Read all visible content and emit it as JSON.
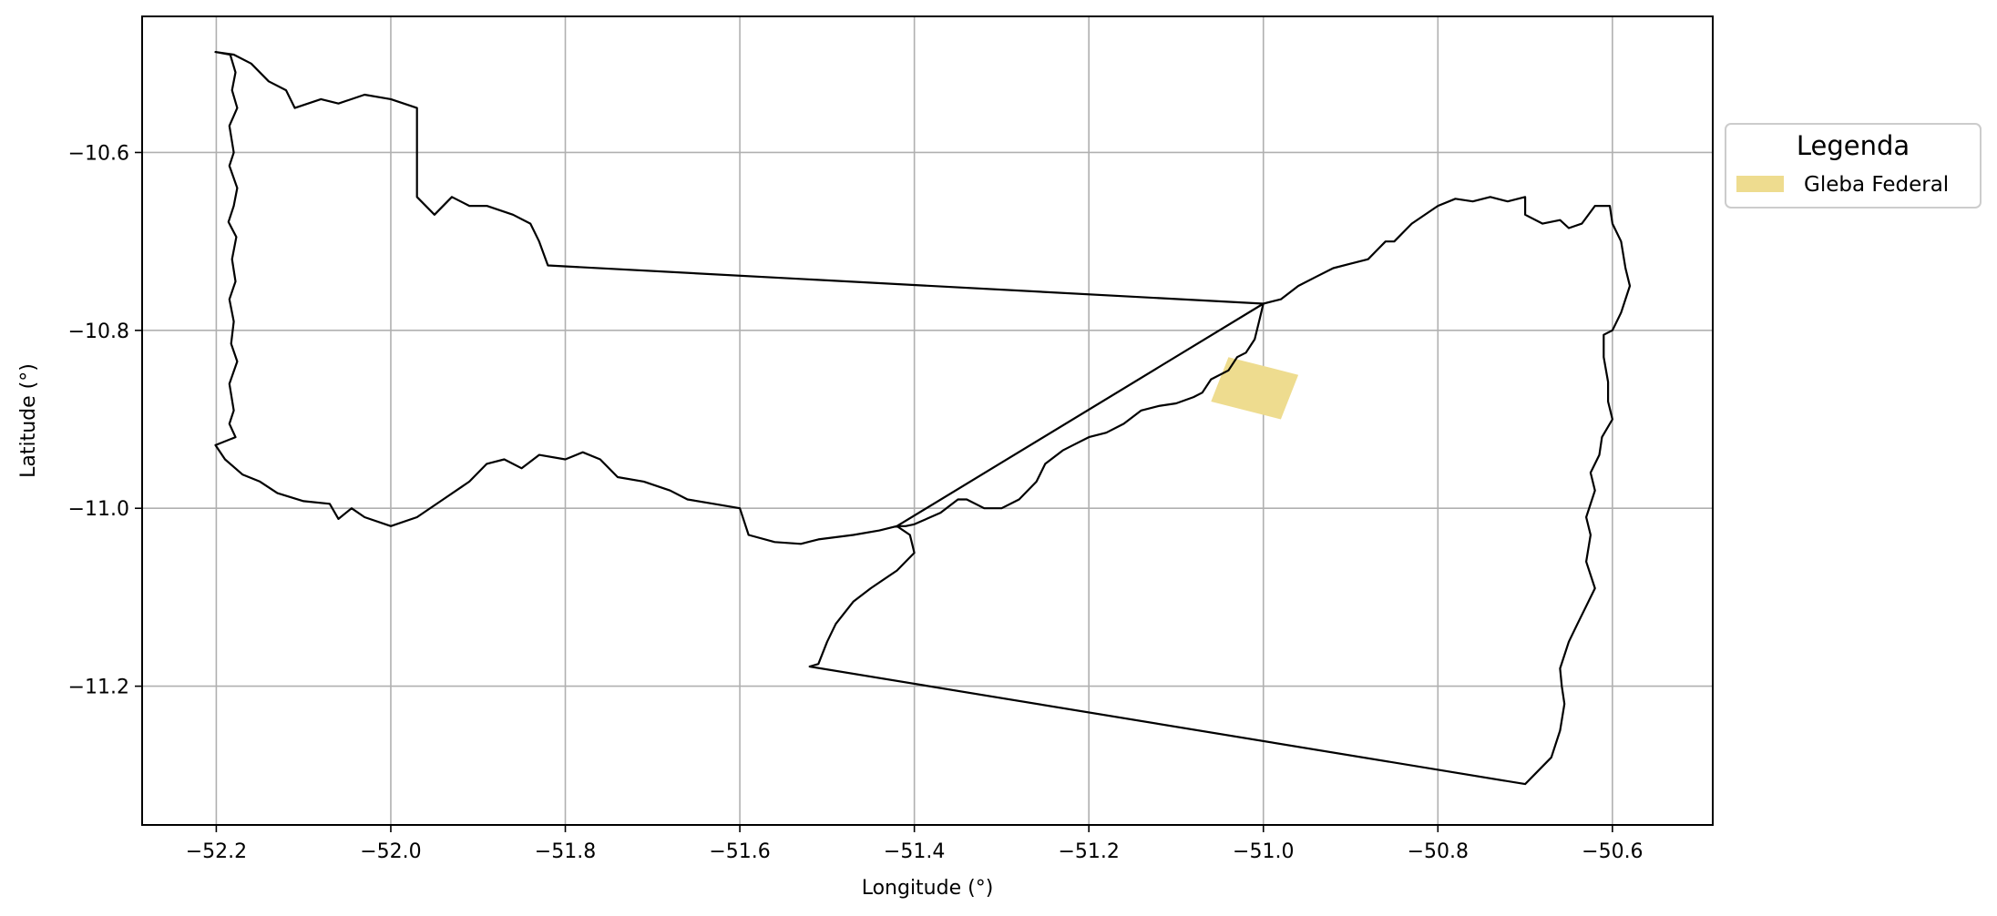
{
  "chart_data": {
    "type": "map",
    "xlabel": "Longitude (°)",
    "ylabel": "Latitude (°)",
    "xlim": [
      -52.285,
      -50.485
    ],
    "ylim": [
      -11.356,
      -10.447
    ],
    "xticks": [
      -52.2,
      -52.0,
      -51.8,
      -51.6,
      -51.4,
      -51.2,
      -51.0,
      -50.8,
      -50.6
    ],
    "xtick_labels": [
      "−52.2",
      "−52.0",
      "−51.8",
      "−51.6",
      "−51.4",
      "−51.2",
      "−51.0",
      "−50.8",
      "−50.6"
    ],
    "yticks": [
      -10.6,
      -10.8,
      -11.0,
      -11.2
    ],
    "ytick_labels": [
      "−10.6",
      "−10.8",
      "−11.0",
      "−11.2"
    ],
    "grid": true,
    "legend": {
      "title": "Legenda",
      "placement": "outside-right-top",
      "entries": [
        {
          "label": "Gleba Federal",
          "color": "#EEDC8F"
        }
      ]
    },
    "colors": {
      "boundary": "#000000",
      "gleba_fill": "#EEDC8F",
      "grid": "#b0b0b0"
    },
    "layers": [
      {
        "name": "municipal boundary",
        "type": "polygon-outline",
        "coordinates": [
          [
            -52.201,
            -10.487
          ],
          [
            -52.184,
            -10.49
          ],
          [
            -52.178,
            -10.51
          ],
          [
            -52.182,
            -10.53
          ],
          [
            -52.176,
            -10.55
          ],
          [
            -52.185,
            -10.57
          ],
          [
            -52.18,
            -10.6
          ],
          [
            -52.185,
            -10.615
          ],
          [
            -52.176,
            -10.64
          ],
          [
            -52.18,
            -10.66
          ],
          [
            -52.186,
            -10.678
          ],
          [
            -52.177,
            -10.695
          ],
          [
            -52.182,
            -10.72
          ],
          [
            -52.178,
            -10.745
          ],
          [
            -52.185,
            -10.765
          ],
          [
            -52.18,
            -10.79
          ],
          [
            -52.183,
            -10.815
          ],
          [
            -52.176,
            -10.835
          ],
          [
            -52.185,
            -10.86
          ],
          [
            -52.18,
            -10.89
          ],
          [
            -52.185,
            -10.905
          ],
          [
            -52.178,
            -10.92
          ],
          [
            -52.201,
            -10.929
          ],
          [
            -52.19,
            -10.945
          ],
          [
            -52.17,
            -10.962
          ],
          [
            -52.15,
            -10.97
          ],
          [
            -52.13,
            -10.983
          ],
          [
            -52.1,
            -10.992
          ],
          [
            -52.07,
            -10.995
          ],
          [
            -52.06,
            -11.012
          ],
          [
            -52.045,
            -11.0
          ],
          [
            -52.03,
            -11.01
          ],
          [
            -52.0,
            -11.02
          ],
          [
            -51.97,
            -11.01
          ],
          [
            -51.94,
            -10.99
          ],
          [
            -51.91,
            -10.97
          ],
          [
            -51.89,
            -10.95
          ],
          [
            -51.87,
            -10.945
          ],
          [
            -51.85,
            -10.955
          ],
          [
            -51.83,
            -10.94
          ],
          [
            -51.8,
            -10.945
          ],
          [
            -51.78,
            -10.937
          ],
          [
            -51.76,
            -10.945
          ],
          [
            -51.74,
            -10.965
          ],
          [
            -51.71,
            -10.97
          ],
          [
            -51.68,
            -10.98
          ],
          [
            -51.66,
            -10.99
          ],
          [
            -51.63,
            -10.995
          ],
          [
            -51.6,
            -11.0
          ],
          [
            -51.59,
            -11.03
          ],
          [
            -51.56,
            -11.038
          ],
          [
            -51.53,
            -11.04
          ],
          [
            -51.51,
            -11.035
          ],
          [
            -51.47,
            -11.03
          ],
          [
            -51.44,
            -11.025
          ],
          [
            -51.42,
            -11.02
          ],
          [
            -51.405,
            -11.03
          ],
          [
            -51.4,
            -11.05
          ],
          [
            -51.42,
            -11.07
          ],
          [
            -51.45,
            -11.09
          ],
          [
            -51.47,
            -11.105
          ],
          [
            -51.49,
            -11.13
          ],
          [
            -51.5,
            -11.15
          ],
          [
            -51.51,
            -11.175
          ],
          [
            -51.52,
            -11.178
          ],
          [
            -50.7,
            -11.31
          ],
          [
            -50.69,
            -11.3
          ],
          [
            -50.67,
            -11.28
          ],
          [
            -50.66,
            -11.25
          ],
          [
            -50.655,
            -11.22
          ],
          [
            -50.658,
            -11.2
          ],
          [
            -50.66,
            -11.18
          ],
          [
            -50.65,
            -11.15
          ],
          [
            -50.64,
            -11.13
          ],
          [
            -50.63,
            -11.11
          ],
          [
            -50.62,
            -11.09
          ],
          [
            -50.63,
            -11.06
          ],
          [
            -50.625,
            -11.03
          ],
          [
            -50.63,
            -11.01
          ],
          [
            -50.62,
            -10.98
          ],
          [
            -50.625,
            -10.96
          ],
          [
            -50.615,
            -10.94
          ],
          [
            -50.612,
            -10.92
          ],
          [
            -50.6,
            -10.9
          ],
          [
            -50.605,
            -10.88
          ],
          [
            -50.605,
            -10.858
          ],
          [
            -50.61,
            -10.83
          ],
          [
            -50.61,
            -10.805
          ],
          [
            -50.6,
            -10.8
          ],
          [
            -50.59,
            -10.78
          ],
          [
            -50.58,
            -10.75
          ],
          [
            -50.585,
            -10.73
          ],
          [
            -50.59,
            -10.7
          ],
          [
            -50.6,
            -10.68
          ],
          [
            -50.603,
            -10.66
          ],
          [
            -50.62,
            -10.66
          ],
          [
            -50.635,
            -10.68
          ],
          [
            -50.65,
            -10.685
          ],
          [
            -50.66,
            -10.676
          ],
          [
            -50.68,
            -10.68
          ],
          [
            -50.7,
            -10.67
          ],
          [
            -50.7,
            -10.65
          ],
          [
            -50.72,
            -10.655
          ],
          [
            -50.74,
            -10.65
          ],
          [
            -50.76,
            -10.655
          ],
          [
            -50.78,
            -10.652
          ],
          [
            -50.8,
            -10.66
          ],
          [
            -50.83,
            -10.68
          ],
          [
            -50.85,
            -10.7
          ],
          [
            -50.86,
            -10.7
          ],
          [
            -50.87,
            -10.71
          ],
          [
            -50.88,
            -10.72
          ],
          [
            -50.9,
            -10.725
          ],
          [
            -50.92,
            -10.73
          ],
          [
            -50.94,
            -10.74
          ],
          [
            -50.96,
            -10.75
          ],
          [
            -50.98,
            -10.765
          ],
          [
            -51.0,
            -10.77
          ],
          [
            -51.005,
            -10.79
          ],
          [
            -51.01,
            -10.81
          ],
          [
            -51.02,
            -10.825
          ],
          [
            -51.03,
            -10.83
          ],
          [
            -51.04,
            -10.845
          ],
          [
            -51.06,
            -10.855
          ],
          [
            -51.07,
            -10.87
          ],
          [
            -51.08,
            -10.875
          ],
          [
            -51.1,
            -10.882
          ],
          [
            -51.12,
            -10.885
          ],
          [
            -51.14,
            -10.89
          ],
          [
            -51.16,
            -10.905
          ],
          [
            -51.18,
            -10.915
          ],
          [
            -51.2,
            -10.92
          ],
          [
            -51.22,
            -10.93
          ],
          [
            -51.23,
            -10.935
          ],
          [
            -51.25,
            -10.95
          ],
          [
            -51.26,
            -10.97
          ],
          [
            -51.28,
            -10.99
          ],
          [
            -51.3,
            -11.0
          ],
          [
            -51.32,
            -11.0
          ],
          [
            -51.34,
            -10.99
          ],
          [
            -51.35,
            -10.99
          ],
          [
            -51.37,
            -11.005
          ],
          [
            -51.4,
            -11.018
          ],
          [
            -51.41,
            -11.02
          ],
          [
            -51.42,
            -11.02
          ]
        ],
        "note_inner_edge": [
          [
            -51.0,
            -10.77
          ],
          [
            -51.82,
            -10.727
          ],
          [
            -51.83,
            -10.7
          ],
          [
            -51.84,
            -10.68
          ],
          [
            -51.86,
            -10.67
          ],
          [
            -51.89,
            -10.66
          ],
          [
            -51.91,
            -10.66
          ],
          [
            -51.93,
            -10.65
          ],
          [
            -51.95,
            -10.67
          ],
          [
            -51.97,
            -10.65
          ],
          [
            -51.97,
            -10.62
          ],
          [
            -51.97,
            -10.59
          ],
          [
            -51.97,
            -10.57
          ],
          [
            -51.97,
            -10.55
          ],
          [
            -52.0,
            -10.54
          ],
          [
            -52.03,
            -10.535
          ],
          [
            -52.06,
            -10.545
          ],
          [
            -52.08,
            -10.54
          ],
          [
            -52.11,
            -10.55
          ],
          [
            -52.12,
            -10.53
          ],
          [
            -52.14,
            -10.52
          ],
          [
            -52.16,
            -10.5
          ],
          [
            -52.18,
            -10.49
          ],
          [
            -52.201,
            -10.487
          ]
        ]
      },
      {
        "name": "Gleba Federal",
        "type": "polygon-fill",
        "coordinates": [
          [
            -51.04,
            -10.83
          ],
          [
            -50.96,
            -10.85
          ],
          [
            -50.98,
            -10.9
          ],
          [
            -51.06,
            -10.88
          ]
        ]
      }
    ]
  }
}
